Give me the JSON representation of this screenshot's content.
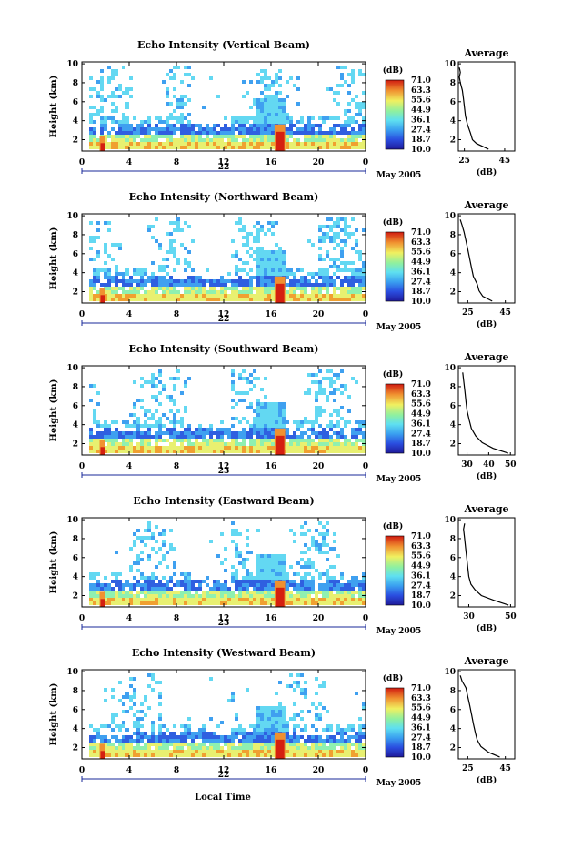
{
  "date_label": "May 2005",
  "xlabel": "Local Time",
  "ylabel": "Height (km)",
  "colorbar_unit": "(dB)",
  "colorbar_ticks": [
    "71.0",
    "63.3",
    "55.6",
    "44.9",
    "36.1",
    "27.4",
    "18.7",
    "10.0"
  ],
  "average_title": "Average",
  "average_xlabel": "(dB)",
  "colors": {
    "low": "#1e1ea0",
    "mid": "#5fd0f0",
    "high": "#d02010"
  },
  "chart_data": [
    {
      "type": "heatmap",
      "title": "Echo Intensity (Vertical Beam)",
      "day": "22",
      "x_ticks": [
        "0",
        "4",
        "8",
        "12",
        "16",
        "20",
        "0"
      ],
      "y_ticks": [
        "2",
        "4",
        "6",
        "8",
        "10"
      ],
      "xlim": [
        0,
        24
      ],
      "ylim": [
        0.8,
        10.2
      ],
      "average": {
        "title": "Average",
        "xlabel": "(dB)",
        "x_ticks": [
          "25",
          "45"
        ],
        "xlim": [
          22,
          50
        ],
        "profile": [
          [
            37,
            1.0
          ],
          [
            31,
            1.6
          ],
          [
            29,
            2.0
          ],
          [
            28,
            2.7
          ],
          [
            26.5,
            3.6
          ],
          [
            25.5,
            4.5
          ],
          [
            25,
            5.5
          ],
          [
            24.5,
            6.4
          ],
          [
            24,
            7.2
          ],
          [
            23,
            8.0
          ],
          [
            22.5,
            8.6
          ],
          [
            23,
            9.1
          ],
          [
            22.5,
            9.6
          ]
        ]
      }
    },
    {
      "type": "heatmap",
      "title": "Echo Intensity (Northward Beam)",
      "day": "22",
      "x_ticks": [
        "0",
        "4",
        "8",
        "12",
        "16",
        "20",
        "0"
      ],
      "y_ticks": [
        "2",
        "4",
        "6",
        "8",
        "10"
      ],
      "xlim": [
        0,
        24
      ],
      "ylim": [
        0.8,
        10.2
      ],
      "average": {
        "title": "Average",
        "xlabel": "(dB)",
        "x_ticks": [
          "25",
          "45"
        ],
        "xlim": [
          20,
          50
        ],
        "profile": [
          [
            38,
            1.0
          ],
          [
            33,
            1.5
          ],
          [
            31,
            2.1
          ],
          [
            30,
            2.8
          ],
          [
            28,
            3.6
          ],
          [
            27,
            4.5
          ],
          [
            26,
            5.5
          ],
          [
            25,
            6.5
          ],
          [
            24,
            7.4
          ],
          [
            23,
            8.3
          ],
          [
            22,
            9.0
          ],
          [
            21,
            9.6
          ]
        ]
      }
    },
    {
      "type": "heatmap",
      "title": "Echo Intensity (Southward Beam)",
      "day": "23",
      "x_ticks": [
        "0",
        "4",
        "8",
        "12",
        "16",
        "20",
        "0"
      ],
      "y_ticks": [
        "2",
        "4",
        "6",
        "8",
        "10"
      ],
      "xlim": [
        0,
        24
      ],
      "ylim": [
        0.8,
        10.2
      ],
      "average": {
        "title": "Average",
        "xlabel": "(dB)",
        "x_ticks": [
          "30",
          "40",
          "50"
        ],
        "xlim": [
          26,
          52
        ],
        "profile": [
          [
            49,
            1.0
          ],
          [
            42,
            1.5
          ],
          [
            37,
            2.1
          ],
          [
            34,
            2.8
          ],
          [
            32,
            3.6
          ],
          [
            31,
            4.5
          ],
          [
            30,
            5.5
          ],
          [
            29.5,
            6.5
          ],
          [
            29,
            7.5
          ],
          [
            28.5,
            8.5
          ],
          [
            28,
            9.5
          ]
        ]
      }
    },
    {
      "type": "heatmap",
      "title": "Echo Intensity (Eastward Beam)",
      "day": "23",
      "x_ticks": [
        "0",
        "4",
        "8",
        "12",
        "16",
        "20",
        "0"
      ],
      "y_ticks": [
        "2",
        "4",
        "6",
        "8",
        "10"
      ],
      "xlim": [
        0,
        24
      ],
      "ylim": [
        0.8,
        10.2
      ],
      "average": {
        "title": "Average",
        "xlabel": "(dB)",
        "x_ticks": [
          "30",
          "50"
        ],
        "xlim": [
          25,
          52
        ],
        "profile": [
          [
            49,
            1.0
          ],
          [
            42,
            1.5
          ],
          [
            36,
            2.0
          ],
          [
            33,
            2.6
          ],
          [
            31,
            3.2
          ],
          [
            30,
            4.0
          ],
          [
            29.5,
            5.0
          ],
          [
            29,
            6.0
          ],
          [
            28.5,
            7.0
          ],
          [
            28,
            8.0
          ],
          [
            27.5,
            9.0
          ],
          [
            28,
            9.6
          ]
        ]
      }
    },
    {
      "type": "heatmap",
      "title": "Echo Intensity (Westward Beam)",
      "day": "22",
      "x_ticks": [
        "0",
        "4",
        "8",
        "12",
        "16",
        "20",
        "0"
      ],
      "y_ticks": [
        "2",
        "4",
        "6",
        "8",
        "10"
      ],
      "xlim": [
        0,
        24
      ],
      "ylim": [
        0.8,
        10.2
      ],
      "average": {
        "title": "Average",
        "xlabel": "(dB)",
        "x_ticks": [
          "25",
          "45"
        ],
        "xlim": [
          20,
          50
        ],
        "profile": [
          [
            42,
            1.0
          ],
          [
            36,
            1.5
          ],
          [
            32,
            2.1
          ],
          [
            30,
            2.8
          ],
          [
            29,
            3.6
          ],
          [
            28,
            4.5
          ],
          [
            27,
            5.5
          ],
          [
            26,
            6.5
          ],
          [
            25,
            7.4
          ],
          [
            24,
            8.3
          ],
          [
            22,
            9.0
          ],
          [
            21,
            9.6
          ]
        ]
      }
    }
  ]
}
